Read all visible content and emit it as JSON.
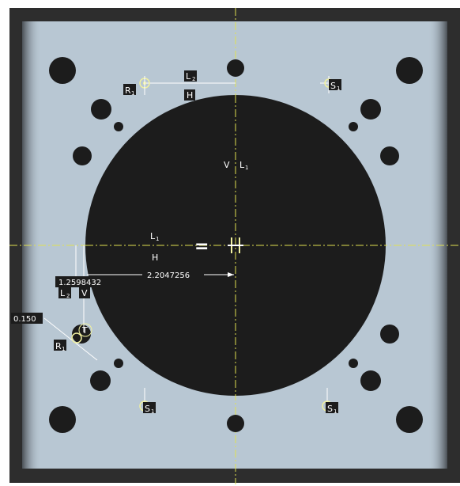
{
  "colors": {
    "frame": "#2d2d2d",
    "plate": "#b8c7d3",
    "hole": "#1c1c1c",
    "axis": "#e0e050",
    "dimension": "#ffffff",
    "label_bg": "#1c1c1c",
    "symbol": "#f1f1a0"
  },
  "dimensions": {
    "horizontal": "2.2047256",
    "vertical": "1.2598432",
    "radius": "0.150"
  },
  "constraints": {
    "top_line_l": "L",
    "top_line_l_sub": "2",
    "top_line_h": "H",
    "vertical_v": "V",
    "vertical_l": "L",
    "vertical_l_sub": "1",
    "center_l": "L",
    "center_l_sub": "1",
    "center_h": "H",
    "center_equal": "=",
    "left_l": "L",
    "left_l_sub": "2",
    "left_v": "V",
    "r_top": "R",
    "r_top_sub": "1",
    "r_left": "R",
    "r_left_sub": "1",
    "s_tr": "S",
    "s_tr_sub": "1",
    "s_bl": "S",
    "s_bl_sub": "1",
    "s_br": "S",
    "s_br_sub": "1",
    "t_mark": "T"
  }
}
